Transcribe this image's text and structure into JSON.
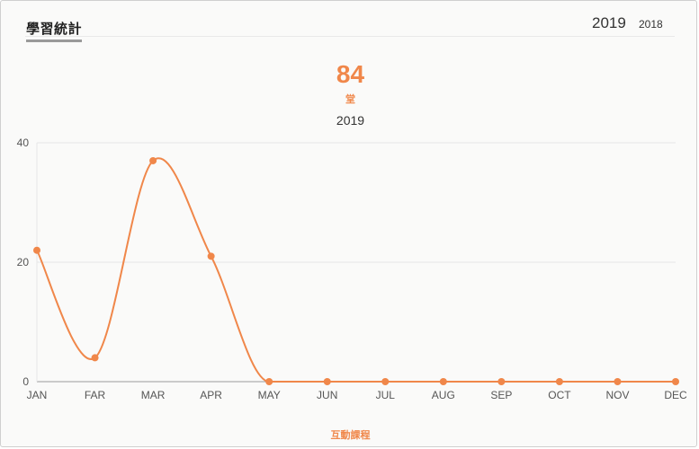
{
  "header": {
    "title": "學習統計",
    "years": [
      {
        "label": "2019",
        "selected": true
      },
      {
        "label": "2018",
        "selected": false
      }
    ]
  },
  "summary": {
    "total": "84",
    "unit": "堂"
  },
  "chart_data": {
    "type": "line",
    "title": "2019",
    "categories": [
      "JAN",
      "FAR",
      "MAR",
      "APR",
      "MAY",
      "JUN",
      "JUL",
      "AUG",
      "SEP",
      "OCT",
      "NOV",
      "DEC"
    ],
    "series": [
      {
        "name": "互動課程",
        "values": [
          22,
          4,
          37,
          21,
          0,
          0,
          0,
          0,
          0,
          0,
          0,
          0
        ]
      }
    ],
    "ylim": [
      0,
      40
    ],
    "yticks": [
      0,
      20,
      40
    ],
    "grid": true,
    "legend": "bottom",
    "colors": {
      "line": "#f0874a",
      "grid": "#e6e6e6",
      "axis": "#9a9a9a"
    }
  }
}
